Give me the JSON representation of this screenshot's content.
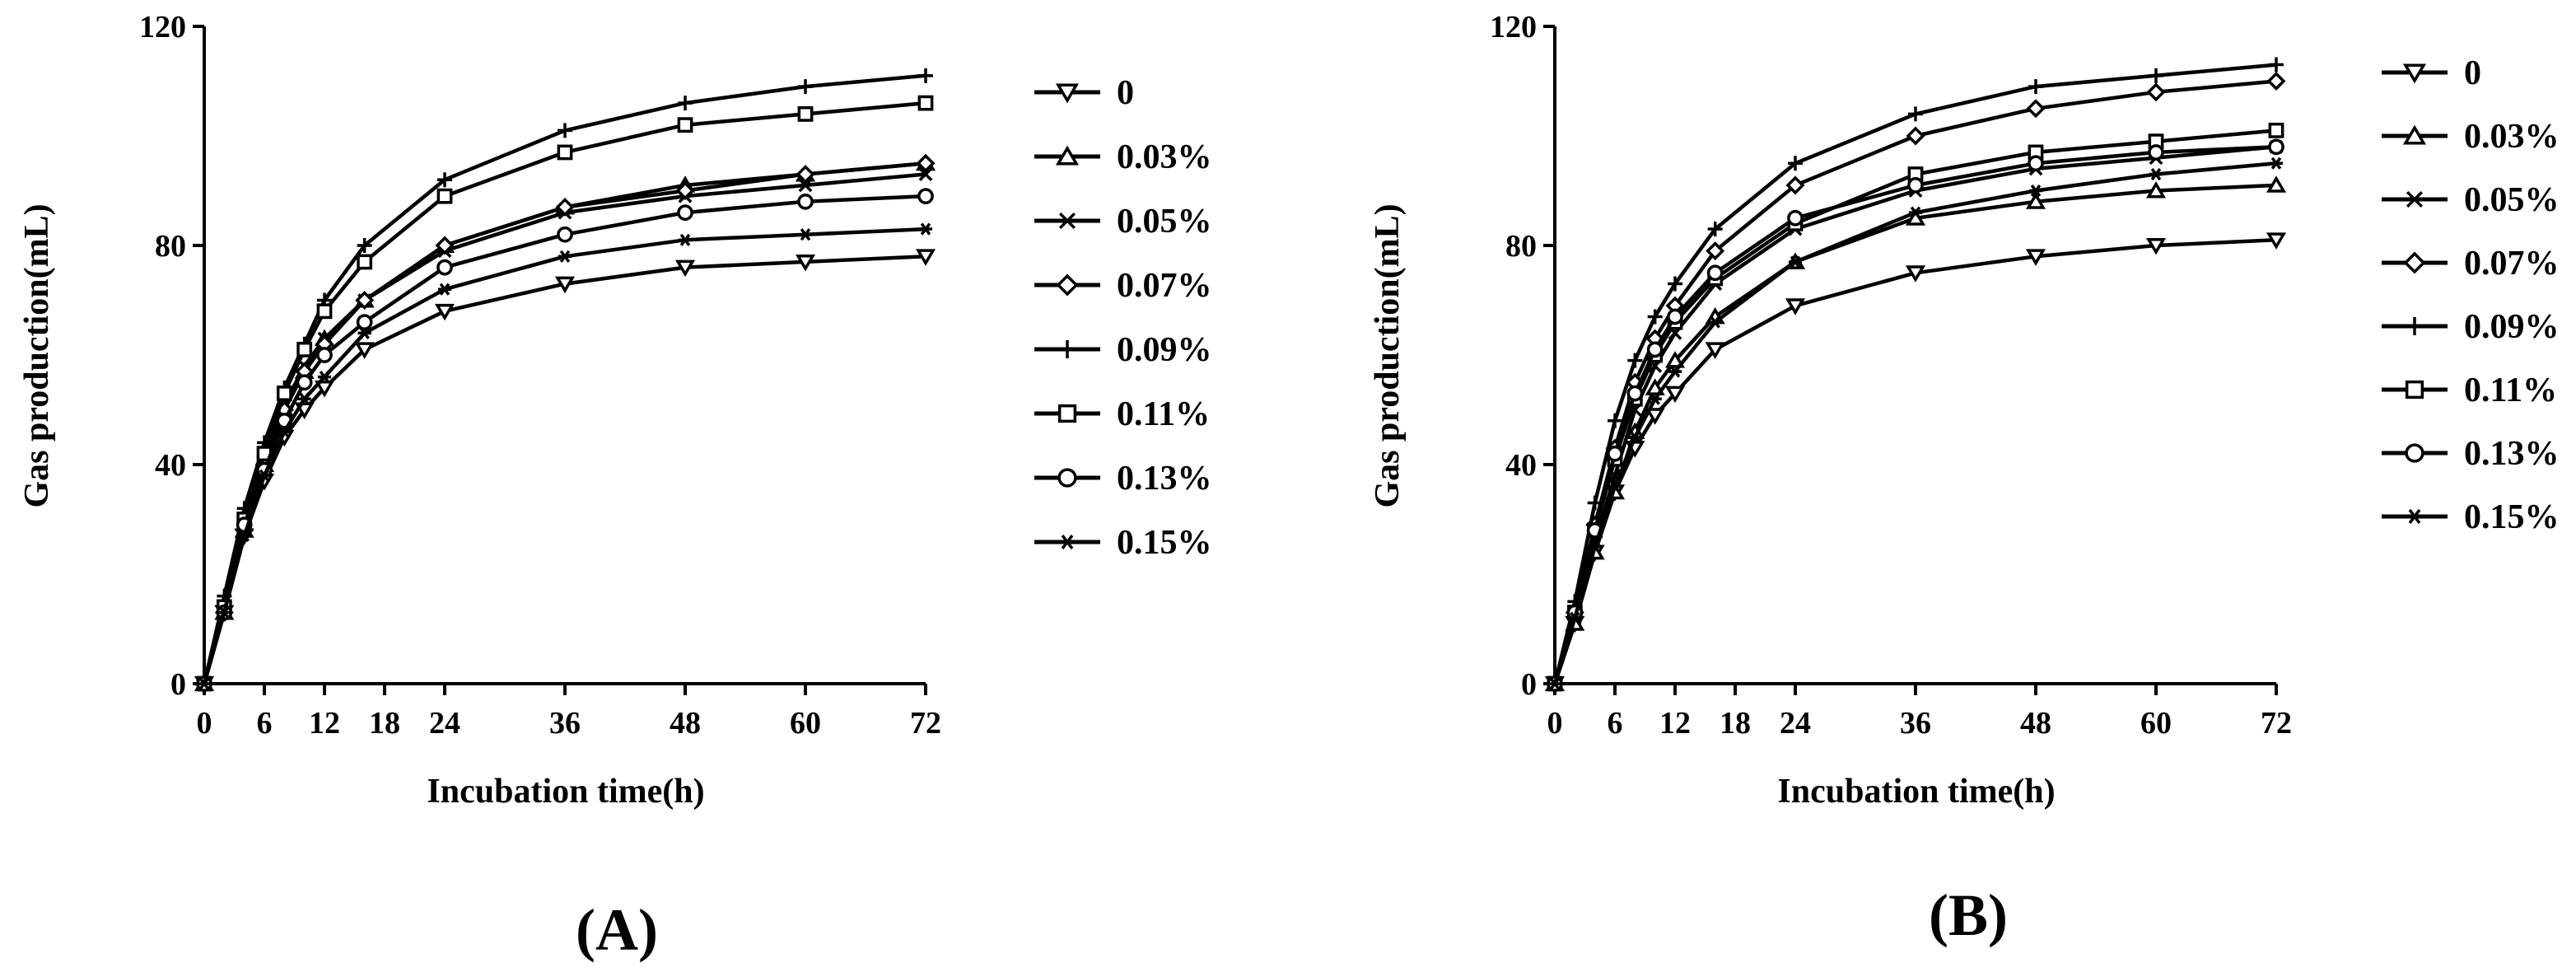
{
  "chart_data": [
    {
      "type": "line",
      "panel_label": "(A)",
      "xlabel": "Incubation time(h)",
      "ylabel": "Gas production(mL)",
      "xlim": [
        0,
        72
      ],
      "ylim": [
        0,
        120
      ],
      "xticks": [
        0,
        6,
        12,
        18,
        24,
        36,
        48,
        60,
        72
      ],
      "yticks": [
        0,
        40,
        80,
        120
      ],
      "x": [
        0,
        2,
        4,
        6,
        8,
        10,
        12,
        16,
        24,
        36,
        48,
        60,
        72
      ],
      "series": [
        {
          "name": "0",
          "marker": "triangle-down",
          "values": [
            0,
            13,
            27,
            37,
            45,
            50,
            54,
            61,
            68,
            73,
            76,
            77,
            78
          ]
        },
        {
          "name": "0.03%",
          "marker": "triangle-up",
          "values": [
            0,
            13,
            28,
            40,
            50,
            57,
            63,
            70,
            80,
            87,
            91,
            93,
            95
          ]
        },
        {
          "name": "0.05%",
          "marker": "x",
          "values": [
            0,
            14,
            29,
            41,
            51,
            58,
            63,
            70,
            79,
            86,
            89,
            91,
            93
          ]
        },
        {
          "name": "0.07%",
          "marker": "diamond",
          "values": [
            0,
            13,
            28,
            40,
            50,
            57,
            62,
            70,
            80,
            87,
            90,
            93,
            95
          ]
        },
        {
          "name": "0.09%",
          "marker": "plus",
          "values": [
            0,
            16,
            32,
            44,
            54,
            62,
            70,
            80,
            92,
            101,
            106,
            109,
            111
          ]
        },
        {
          "name": "0.11%",
          "marker": "square",
          "values": [
            0,
            14,
            30,
            42,
            53,
            61,
            68,
            77,
            89,
            97,
            102,
            104,
            106
          ]
        },
        {
          "name": "0.13%",
          "marker": "circle",
          "values": [
            0,
            13,
            29,
            39,
            48,
            55,
            60,
            66,
            76,
            82,
            86,
            88,
            89
          ]
        },
        {
          "name": "0.15%",
          "marker": "asterisk",
          "values": [
            0,
            13,
            27,
            38,
            46,
            52,
            56,
            64,
            72,
            78,
            81,
            82,
            83
          ]
        }
      ]
    },
    {
      "type": "line",
      "panel_label": "(B)",
      "xlabel": "Incubation time(h)",
      "ylabel": "Gas production(mL)",
      "xlim": [
        0,
        72
      ],
      "ylim": [
        0,
        120
      ],
      "xticks": [
        0,
        6,
        12,
        18,
        24,
        36,
        48,
        60,
        72
      ],
      "yticks": [
        0,
        40,
        80,
        120
      ],
      "x": [
        0,
        2,
        4,
        6,
        8,
        10,
        12,
        16,
        24,
        36,
        48,
        60,
        72
      ],
      "series": [
        {
          "name": "0",
          "marker": "triangle-down",
          "values": [
            0,
            11,
            24,
            35,
            43,
            49,
            53,
            61,
            69,
            75,
            78,
            80,
            81
          ]
        },
        {
          "name": "0.03%",
          "marker": "triangle-up",
          "values": [
            0,
            11,
            24,
            35,
            46,
            54,
            59,
            67,
            77,
            85,
            88,
            90,
            91
          ]
        },
        {
          "name": "0.05%",
          "marker": "x",
          "values": [
            0,
            12,
            26,
            38,
            50,
            58,
            64,
            73,
            83,
            90,
            94,
            96,
            98
          ]
        },
        {
          "name": "0.07%",
          "marker": "diamond",
          "values": [
            0,
            13,
            29,
            43,
            55,
            63,
            69,
            79,
            91,
            100,
            105,
            108,
            110
          ]
        },
        {
          "name": "0.09%",
          "marker": "plus",
          "values": [
            0,
            15,
            33,
            48,
            59,
            67,
            73,
            83,
            95,
            104,
            109,
            111,
            113
          ]
        },
        {
          "name": "0.11%",
          "marker": "square",
          "values": [
            0,
            13,
            28,
            41,
            52,
            60,
            66,
            74,
            84,
            93,
            97,
            99,
            101
          ]
        },
        {
          "name": "0.13%",
          "marker": "circle",
          "values": [
            0,
            13,
            28,
            42,
            53,
            61,
            67,
            75,
            85,
            91,
            95,
            97,
            98
          ]
        },
        {
          "name": "0.15%",
          "marker": "asterisk",
          "values": [
            0,
            12,
            25,
            36,
            45,
            52,
            57,
            66,
            77,
            86,
            90,
            93,
            95
          ]
        }
      ]
    }
  ]
}
